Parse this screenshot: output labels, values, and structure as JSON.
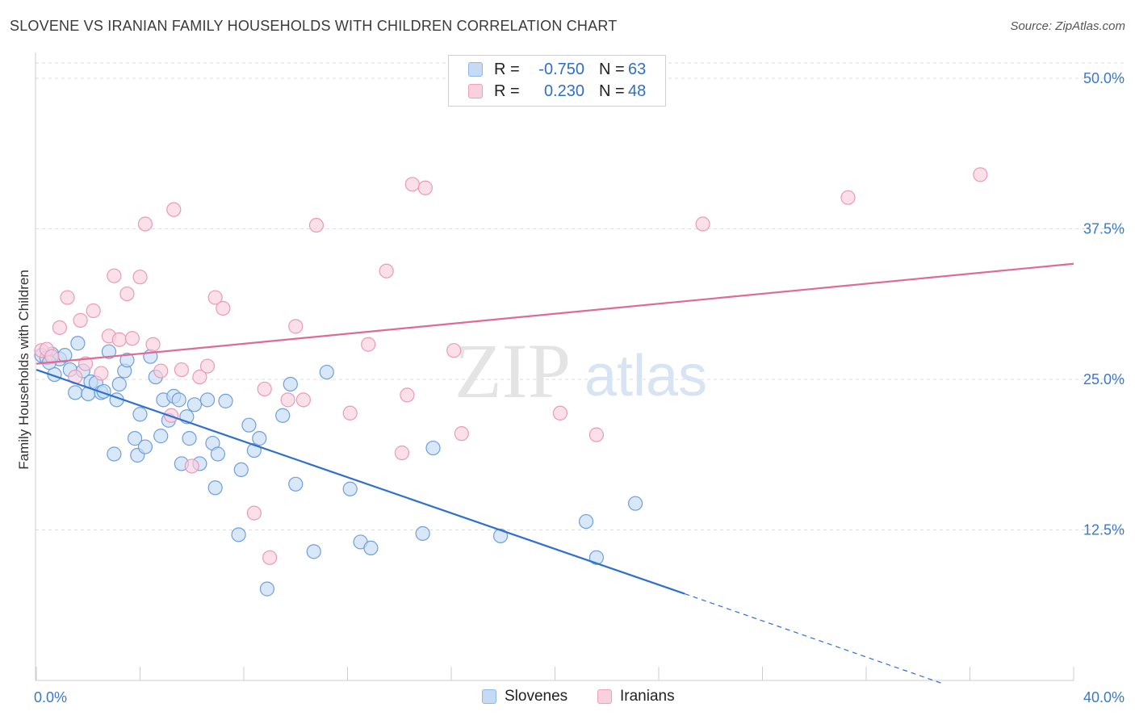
{
  "header": {
    "title": "SLOVENE VS IRANIAN FAMILY HOUSEHOLDS WITH CHILDREN CORRELATION CHART",
    "source": "Source: ZipAtlas.com"
  },
  "watermark": {
    "zip": "ZIP",
    "atlas": "atlas"
  },
  "legend": {
    "rows": [
      {
        "r_label": "R =",
        "r_value": "-0.750",
        "n_label": "N =",
        "n_value": "63",
        "color": "#8fb8ea",
        "fill": "#c5dbf5"
      },
      {
        "r_label": "R =",
        "r_value": "0.230",
        "n_label": "N =",
        "n_value": "48",
        "color": "#f0a0bb",
        "fill": "#f9d0de"
      }
    ]
  },
  "bottom_legend": [
    {
      "label": "Slovenes",
      "color": "#8fb8ea",
      "fill": "#c5dbf5"
    },
    {
      "label": "Iranians",
      "color": "#f0a0bb",
      "fill": "#f9d0de"
    }
  ],
  "chart_data": {
    "type": "scatter",
    "title": "SLOVENE VS IRANIAN FAMILY HOUSEHOLDS WITH CHILDREN CORRELATION CHART",
    "xlabel": "",
    "ylabel": "Family Households with Children",
    "xlim": [
      0,
      40
    ],
    "ylim": [
      0,
      52
    ],
    "x_tick_labels": [
      {
        "value": 0,
        "label": "0.0%"
      },
      {
        "value": 40,
        "label": "40.0%"
      }
    ],
    "y_tick_labels": [
      {
        "value": 12.5,
        "label": "12.5%"
      },
      {
        "value": 25,
        "label": "25.0%"
      },
      {
        "value": 37.5,
        "label": "37.5%"
      },
      {
        "value": 50,
        "label": "50.0%"
      }
    ],
    "grid": true,
    "legend_position": "top-center",
    "series": [
      {
        "name": "Slovenes",
        "color": "#4a86d4",
        "fill": "#c5dbf5",
        "points": [
          [
            0.2,
            27.0
          ],
          [
            0.4,
            26.8
          ],
          [
            0.6,
            27.1
          ],
          [
            0.7,
            25.4
          ],
          [
            0.9,
            26.7
          ],
          [
            1.1,
            27.0
          ],
          [
            1.3,
            25.8
          ],
          [
            1.5,
            23.9
          ],
          [
            1.6,
            28.0
          ],
          [
            1.8,
            25.7
          ],
          [
            2.0,
            23.8
          ],
          [
            2.1,
            24.8
          ],
          [
            2.3,
            24.7
          ],
          [
            2.5,
            23.9
          ],
          [
            2.6,
            24.0
          ],
          [
            2.8,
            27.3
          ],
          [
            3.0,
            18.8
          ],
          [
            3.1,
            23.3
          ],
          [
            3.2,
            24.6
          ],
          [
            3.4,
            25.7
          ],
          [
            3.5,
            26.6
          ],
          [
            3.8,
            20.1
          ],
          [
            3.9,
            18.7
          ],
          [
            4.0,
            22.1
          ],
          [
            4.2,
            19.4
          ],
          [
            4.4,
            26.9
          ],
          [
            4.6,
            25.2
          ],
          [
            4.8,
            20.3
          ],
          [
            4.9,
            23.3
          ],
          [
            5.1,
            21.6
          ],
          [
            5.3,
            23.6
          ],
          [
            5.5,
            23.3
          ],
          [
            5.6,
            18.0
          ],
          [
            5.8,
            21.9
          ],
          [
            5.9,
            20.1
          ],
          [
            6.1,
            22.9
          ],
          [
            6.3,
            18.0
          ],
          [
            6.6,
            23.3
          ],
          [
            6.8,
            19.7
          ],
          [
            6.9,
            16.0
          ],
          [
            7.0,
            18.8
          ],
          [
            7.3,
            23.2
          ],
          [
            7.8,
            12.1
          ],
          [
            7.9,
            17.5
          ],
          [
            8.2,
            21.2
          ],
          [
            8.4,
            19.1
          ],
          [
            8.6,
            20.1
          ],
          [
            8.9,
            7.6
          ],
          [
            9.5,
            22.0
          ],
          [
            9.8,
            24.6
          ],
          [
            10.0,
            16.3
          ],
          [
            10.7,
            10.7
          ],
          [
            11.2,
            25.6
          ],
          [
            12.1,
            15.9
          ],
          [
            12.5,
            11.5
          ],
          [
            12.9,
            11.0
          ],
          [
            14.9,
            12.2
          ],
          [
            15.3,
            19.3
          ],
          [
            17.9,
            12.0
          ],
          [
            21.2,
            13.2
          ],
          [
            21.6,
            10.2
          ],
          [
            23.1,
            14.7
          ],
          [
            0.5,
            26.4
          ]
        ],
        "trend": {
          "x0": 0,
          "y0": 25.8,
          "x1": 25.0,
          "y1": 7.2,
          "dash_x1": 35.0,
          "dash_y1": -0.3
        }
      },
      {
        "name": "Iranians",
        "color": "#e0749c",
        "fill": "#f9d0de",
        "points": [
          [
            0.2,
            27.4
          ],
          [
            0.4,
            27.5
          ],
          [
            0.6,
            26.9
          ],
          [
            0.9,
            29.3
          ],
          [
            1.2,
            31.8
          ],
          [
            1.5,
            25.2
          ],
          [
            1.7,
            29.9
          ],
          [
            1.9,
            26.3
          ],
          [
            2.2,
            30.7
          ],
          [
            2.5,
            25.5
          ],
          [
            2.8,
            28.6
          ],
          [
            3.0,
            33.6
          ],
          [
            3.2,
            28.3
          ],
          [
            3.5,
            32.1
          ],
          [
            3.7,
            28.4
          ],
          [
            4.0,
            33.5
          ],
          [
            4.2,
            37.9
          ],
          [
            4.5,
            27.9
          ],
          [
            4.8,
            25.7
          ],
          [
            5.2,
            22.0
          ],
          [
            5.3,
            39.1
          ],
          [
            5.6,
            25.8
          ],
          [
            6.0,
            17.8
          ],
          [
            6.3,
            25.2
          ],
          [
            6.6,
            26.1
          ],
          [
            6.9,
            31.8
          ],
          [
            7.2,
            30.9
          ],
          [
            8.4,
            13.9
          ],
          [
            8.8,
            24.2
          ],
          [
            9.0,
            10.2
          ],
          [
            9.7,
            23.3
          ],
          [
            10.0,
            29.4
          ],
          [
            10.3,
            23.3
          ],
          [
            10.8,
            37.8
          ],
          [
            12.1,
            22.2
          ],
          [
            12.8,
            27.9
          ],
          [
            13.5,
            34.0
          ],
          [
            14.1,
            18.9
          ],
          [
            14.3,
            23.7
          ],
          [
            14.5,
            41.2
          ],
          [
            15.0,
            40.9
          ],
          [
            16.1,
            27.4
          ],
          [
            16.4,
            20.5
          ],
          [
            20.2,
            22.2
          ],
          [
            21.6,
            20.4
          ],
          [
            25.7,
            37.9
          ],
          [
            31.3,
            40.1
          ],
          [
            36.4,
            42.0
          ]
        ],
        "trend": {
          "x0": 0,
          "y0": 26.3,
          "x1": 40.0,
          "y1": 34.6
        }
      }
    ]
  }
}
